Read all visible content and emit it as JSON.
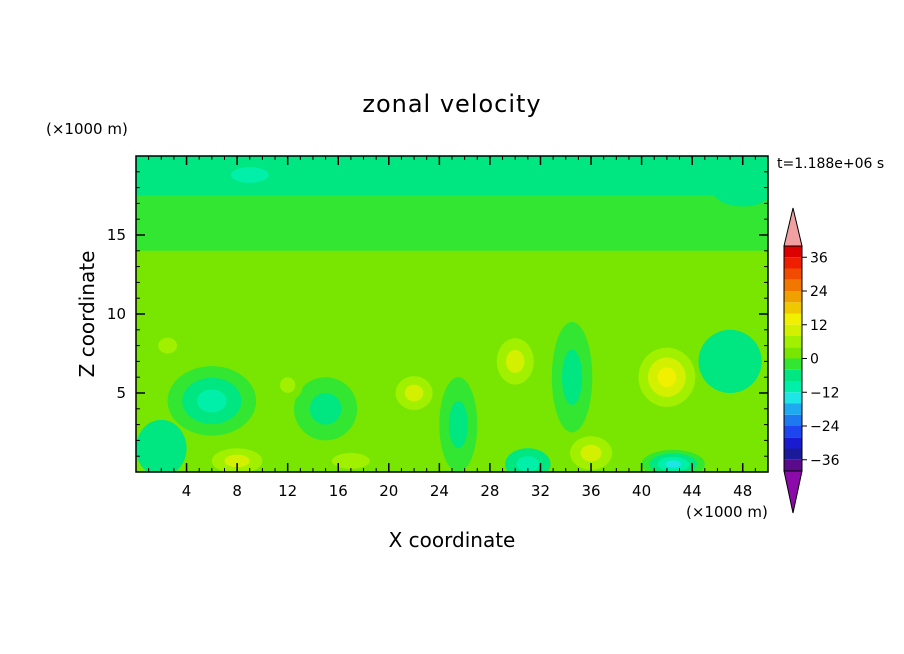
{
  "chart_data": {
    "type": "heatmap",
    "title": "zonal velocity",
    "xlabel": "X coordinate",
    "ylabel": "Z coordinate",
    "x_unit": "(×1000 m)",
    "y_unit": "(×1000 m)",
    "time_label": "t=1.188e+06 s",
    "xlim": [
      0,
      50
    ],
    "ylim": [
      0,
      20
    ],
    "x_ticks": [
      4,
      8,
      12,
      16,
      20,
      24,
      28,
      32,
      36,
      40,
      44,
      48
    ],
    "y_ticks": [
      5,
      10,
      15
    ],
    "colorbar": {
      "levels": [
        -40,
        -36,
        -32,
        -28,
        -24,
        -20,
        -16,
        -12,
        -8,
        -4,
        0,
        4,
        8,
        12,
        16,
        20,
        24,
        28,
        32,
        36,
        40
      ],
      "tick_labels": [
        36,
        24,
        12,
        0,
        -12,
        -24,
        -36
      ],
      "colors": [
        "#5a0a8a",
        "#1a1a9a",
        "#1a1ad0",
        "#1e46f0",
        "#1e78f0",
        "#1eaaf0",
        "#1ee6e6",
        "#00f0aa",
        "#00e680",
        "#32e632",
        "#78e600",
        "#a0f000",
        "#d2f000",
        "#f0f000",
        "#f0c800",
        "#f0a000",
        "#f07800",
        "#f04b00",
        "#f01e00",
        "#dc0000"
      ],
      "over_color": "#f0a0a0",
      "under_color": "#8c0aaa"
    },
    "field": {
      "background": 2,
      "bands": [
        {
          "z": [
            17.5,
            20
          ],
          "value": -6
        },
        {
          "z": [
            14,
            17.5
          ],
          "value": -2
        },
        {
          "z": [
            9,
            14
          ],
          "value": 2
        }
      ],
      "blobs": [
        {
          "x": 30,
          "z": 7,
          "rx": 2.2,
          "rz": 2.2,
          "value": 10
        },
        {
          "x": 42,
          "z": 6,
          "rx": 3,
          "rz": 2.5,
          "value": 14
        },
        {
          "x": 8,
          "z": 0.7,
          "rx": 3,
          "rz": 1.2,
          "value": 10
        },
        {
          "x": 17,
          "z": 0.7,
          "rx": 3,
          "rz": 1,
          "value": 8
        },
        {
          "x": 36,
          "z": 1.2,
          "rx": 2.5,
          "rz": 1.6,
          "value": 12
        },
        {
          "x": 22,
          "z": 5,
          "rx": 2.2,
          "rz": 1.6,
          "value": 10
        },
        {
          "x": 6,
          "z": 4.5,
          "rx": 3.5,
          "rz": 2.2,
          "value": -12
        },
        {
          "x": 34.5,
          "z": 6,
          "rx": 1.6,
          "rz": 3.5,
          "value": -7
        },
        {
          "x": 42.5,
          "z": 0.5,
          "rx": 2.5,
          "rz": 0.9,
          "value": -16
        },
        {
          "x": 31,
          "z": 0.5,
          "rx": 1.8,
          "rz": 1,
          "value": -9
        },
        {
          "x": 25.5,
          "z": 3,
          "rx": 1.5,
          "rz": 3,
          "value": -6
        },
        {
          "x": 15,
          "z": 4,
          "rx": 2.5,
          "rz": 2,
          "value": -6
        },
        {
          "x": 2,
          "z": 1.5,
          "rx": 2,
          "rz": 1.8,
          "value": -5
        },
        {
          "x": 2.5,
          "z": 8,
          "rx": 1.5,
          "rz": 1,
          "value": 8
        },
        {
          "x": 12,
          "z": 5.5,
          "rx": 1.2,
          "rz": 1,
          "value": 6
        },
        {
          "x": 47,
          "z": 7,
          "rx": 2.5,
          "rz": 2,
          "value": -5
        },
        {
          "x": 9,
          "z": 18.8,
          "rx": 3,
          "rz": 1,
          "value": -9
        },
        {
          "x": 48,
          "z": 18,
          "rx": 2.5,
          "rz": 1.2,
          "value": -5
        }
      ]
    }
  }
}
